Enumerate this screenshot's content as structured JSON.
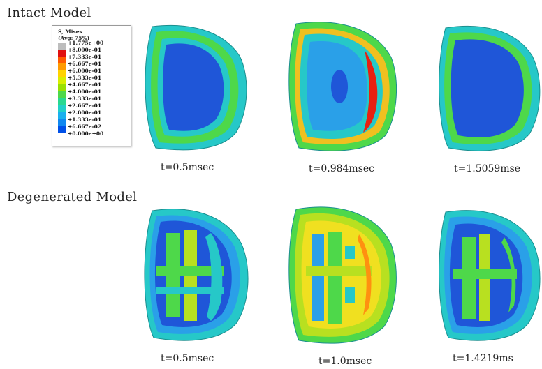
{
  "sections": {
    "intact": {
      "title": "Intact Model",
      "captions": [
        "t=0.5msec",
        "t=0.984msec",
        "t=1.5059mse"
      ]
    },
    "degenerated": {
      "title": "Degenerated Model",
      "captions": [
        "t=0.5msec",
        "t=1.0msec",
        "t=1.4219ms"
      ]
    }
  },
  "legend": {
    "title_line1": "S, Mises",
    "title_line2": "(Avg: 75%)",
    "labels": [
      "+1.775e+00",
      "+8.000e-01",
      "+7.333e-01",
      "+6.667e-01",
      "+6.000e-01",
      "+5.333e-01",
      "+4.667e-01",
      "+4.000e-01",
      "+3.333e-01",
      "+2.667e-01",
      "+2.000e-01",
      "+1.333e-01",
      "+6.667e-02",
      "+0.000e+00"
    ],
    "colors": [
      "#bdbdbd",
      "#e01010",
      "#ff5a00",
      "#ff9a00",
      "#ffd200",
      "#d8ee00",
      "#9ae000",
      "#4ed84a",
      "#28d890",
      "#20d0c8",
      "#1ab0ee",
      "#1088f0",
      "#0050e8"
    ]
  },
  "colors": {
    "blue": "#1f56d8",
    "lightblue": "#2aa0e8",
    "cyan": "#26c8c8",
    "green": "#4ed84a",
    "yellowgreen": "#b8e020",
    "yellow": "#f0e020",
    "orange": "#ff9010",
    "red": "#e82010"
  }
}
